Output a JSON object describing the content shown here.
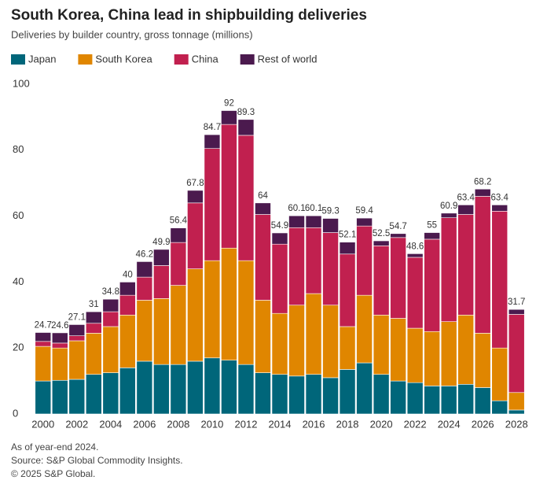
{
  "chart_data": {
    "type": "stacked_bar",
    "title": "South Korea, China lead in shipbuilding deliveries",
    "subtitle": "Deliveries by builder country, gross tonnage (millions)",
    "notes": [
      "As of year-end 2024.",
      "Source: S&P Global Commodity Insights.",
      "© 2025 S&P Global."
    ],
    "categories": [
      "2000",
      null,
      "2002",
      null,
      "2004",
      null,
      "2006",
      null,
      "2008",
      null,
      "2010",
      null,
      "2012",
      null,
      "2014",
      null,
      "2016",
      null,
      "2018",
      null,
      "2020",
      null,
      "2022",
      null,
      "2024",
      null,
      "2026",
      null,
      "2028"
    ],
    "series": [
      {
        "name": "Japan",
        "color": "#00667a",
        "values": [
          10,
          10.2,
          10.5,
          12,
          12.5,
          14,
          16,
          15,
          15,
          16,
          17,
          16.3,
          15,
          12.5,
          12,
          11.5,
          12,
          11,
          13.5,
          15.5,
          12,
          10,
          9.5,
          8.5,
          8.5,
          9,
          8,
          4,
          1.2
        ]
      },
      {
        "name": "South Korea",
        "color": "#e08600",
        "values": [
          10.5,
          9.8,
          11.7,
          12.5,
          14,
          16,
          18.5,
          20,
          24,
          28,
          29.5,
          34,
          31.5,
          22,
          18.5,
          21.5,
          24.5,
          22,
          13,
          20.5,
          18,
          19,
          16.5,
          16.5,
          19.5,
          21,
          16.5,
          16,
          5.3
        ]
      },
      {
        "name": "China",
        "color": "#c1204f",
        "values": [
          1.5,
          1.5,
          1.5,
          3,
          4.5,
          6,
          7,
          10,
          13,
          20,
          34,
          37.5,
          38,
          26,
          21,
          23.5,
          20,
          22,
          22,
          21,
          21,
          24.5,
          21.5,
          28,
          31.5,
          30.5,
          41.5,
          41.5,
          23.7
        ]
      },
      {
        "name": "Rest of world",
        "color": "#4b1a4e",
        "values": [
          2.7,
          3.1,
          3.4,
          3.5,
          3.8,
          4,
          4.7,
          4.9,
          4.4,
          3.8,
          4.2,
          4.2,
          4.8,
          3.5,
          3.4,
          3.6,
          3.6,
          4.3,
          3.6,
          2.4,
          1.5,
          1.2,
          1.1,
          2,
          1.4,
          2.9,
          2.2,
          1.9,
          1.5
        ]
      }
    ],
    "totals": [
      24.7,
      24.6,
      27.1,
      31,
      34.8,
      40,
      46.2,
      49.9,
      56.4,
      67.8,
      84.7,
      92,
      89.3,
      64,
      54.9,
      60.1,
      60.1,
      59.3,
      52.1,
      59.4,
      52.5,
      54.7,
      48.6,
      55,
      60.9,
      63.4,
      68.2,
      63.4,
      31.7
    ],
    "ylim": [
      0,
      100
    ],
    "yticks": [
      0,
      20,
      40,
      60,
      80,
      100
    ]
  }
}
